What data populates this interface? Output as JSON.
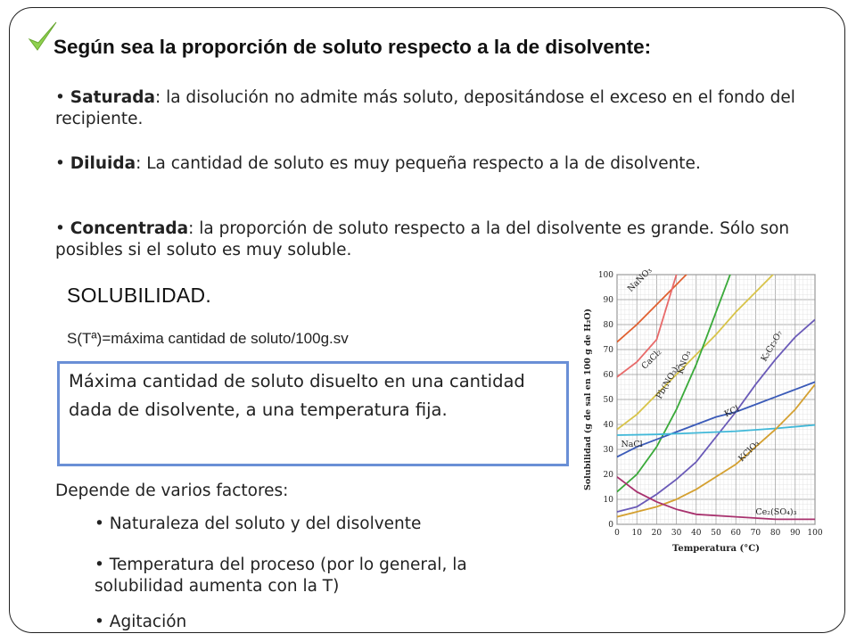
{
  "heading": "Según sea la proporción de soluto respecto a la de disolvente:",
  "bullets": [
    {
      "term": "Saturada",
      "text": ": la disolución no admite más soluto, depositándose el exceso en el fondo del recipiente."
    },
    {
      "term": "Diluida",
      "text": ": La cantidad de soluto es muy pequeña respecto a la de disolvente."
    },
    {
      "term": "Concentrada",
      "text": ": la proporción de soluto respecto a la del disolvente es grande. Sólo son posibles si el soluto es muy soluble."
    }
  ],
  "solubility": {
    "title": "SOLUBILIDAD.",
    "definition": "S(Tª)=máxima cantidad de soluto/100g.sv",
    "box_text": "Máxima cantidad de soluto disuelto en una cantidad dada de disolvente, a una temperatura fija."
  },
  "factors": {
    "intro": "Depende de varios factores:",
    "items": [
      "• Naturaleza del soluto y del disolvente",
      "• Temperatura del proceso (por lo general, la solubilidad aumenta con la T)",
      "• Agitación"
    ]
  },
  "chart_data": {
    "type": "line",
    "xlabel": "Temperatura (°C)",
    "ylabel": "Solubilidad (g de sal en 100 g de H₂O)",
    "xlim": [
      0,
      100
    ],
    "ylim": [
      0,
      100
    ],
    "x_ticks": [
      "0",
      "10",
      "20",
      "30",
      "40",
      "50",
      "60",
      "70",
      "80",
      "90",
      "100"
    ],
    "y_ticks": [
      "0",
      "10",
      "20",
      "30",
      "40",
      "50",
      "60",
      "70",
      "80",
      "90",
      "100"
    ],
    "grid": true,
    "series": [
      {
        "name": "NaNO₃",
        "color": "#e06030",
        "x": [
          0,
          10,
          20,
          30,
          40
        ],
        "y": [
          73,
          80,
          88,
          96,
          104
        ]
      },
      {
        "name": "CaCl₂",
        "color": "#e86a6a",
        "x": [
          0,
          10,
          20,
          30
        ],
        "y": [
          59,
          65,
          74,
          100
        ]
      },
      {
        "name": "Pb(NO₃)₂",
        "color": "#d8c44a",
        "x": [
          0,
          10,
          20,
          30,
          40,
          50,
          60,
          70,
          80
        ],
        "y": [
          38,
          44,
          52,
          60,
          68,
          76,
          85,
          93,
          101
        ]
      },
      {
        "name": "KNO₃",
        "color": "#3aaa3a",
        "x": [
          0,
          10,
          20,
          30,
          40,
          50,
          60
        ],
        "y": [
          13,
          20,
          31,
          46,
          64,
          85,
          106
        ]
      },
      {
        "name": "K₂Cr₂O₇",
        "color": "#6a5ab8",
        "x": [
          0,
          10,
          20,
          30,
          40,
          50,
          60,
          70,
          80,
          90,
          100
        ],
        "y": [
          5,
          7,
          12,
          18,
          25,
          35,
          45,
          56,
          66,
          75,
          82
        ]
      },
      {
        "name": "KCl",
        "color": "#3a5ab8",
        "x": [
          0,
          10,
          20,
          30,
          40,
          50,
          60,
          70,
          80,
          90,
          100
        ],
        "y": [
          27,
          31,
          34,
          37,
          40,
          43,
          45,
          48,
          51,
          54,
          57
        ]
      },
      {
        "name": "NaCl",
        "color": "#40b8d8",
        "x": [
          0,
          20,
          40,
          60,
          80,
          100
        ],
        "y": [
          35.7,
          36,
          36.6,
          37.3,
          38.4,
          39.8
        ]
      },
      {
        "name": "KClO₃",
        "color": "#d4a030",
        "x": [
          0,
          10,
          20,
          30,
          40,
          50,
          60,
          70,
          80,
          90,
          100
        ],
        "y": [
          3,
          5,
          7,
          10,
          14,
          19,
          24,
          31,
          38,
          46,
          56
        ]
      },
      {
        "name": "Ce₂(SO₄)₃",
        "color": "#a8326e",
        "x": [
          0,
          10,
          20,
          30,
          40,
          60,
          80,
          100
        ],
        "y": [
          19,
          13,
          9,
          6,
          4,
          3,
          2,
          2
        ]
      }
    ]
  }
}
